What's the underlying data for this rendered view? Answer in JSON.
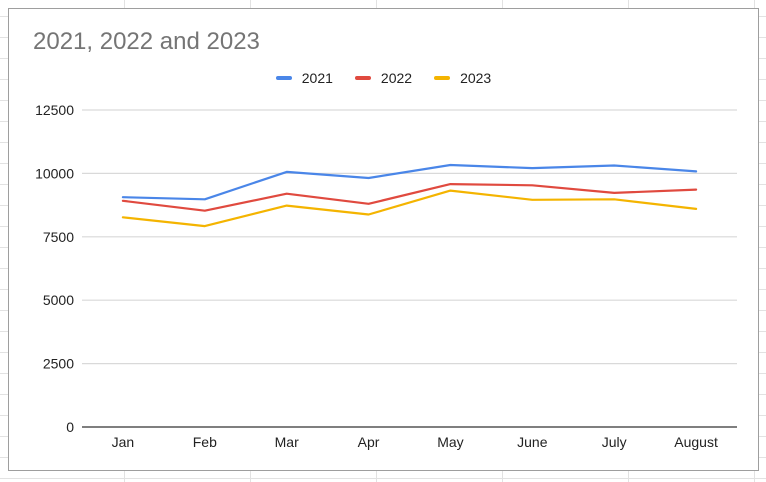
{
  "chart_data": {
    "type": "line",
    "title": "2021, 2022 and 2023",
    "xlabel": "",
    "ylabel": "",
    "categories": [
      "Jan",
      "Feb",
      "Mar",
      "Apr",
      "May",
      "June",
      "July",
      "August"
    ],
    "series": [
      {
        "name": "2021",
        "color": "#4a86e8",
        "values": [
          9060,
          8980,
          10060,
          9820,
          10330,
          10210,
          10310,
          10080
        ]
      },
      {
        "name": "2022",
        "color": "#e04a3f",
        "values": [
          8920,
          8530,
          9200,
          8800,
          9580,
          9530,
          9230,
          9360
        ]
      },
      {
        "name": "2023",
        "color": "#f4b400",
        "values": [
          8270,
          7920,
          8730,
          8380,
          9320,
          8960,
          8980,
          8600
        ]
      }
    ],
    "ylim": [
      0,
      12500
    ],
    "yticks": [
      0,
      2500,
      5000,
      7500,
      10000,
      12500
    ],
    "legend_position": "top",
    "grid": true
  }
}
